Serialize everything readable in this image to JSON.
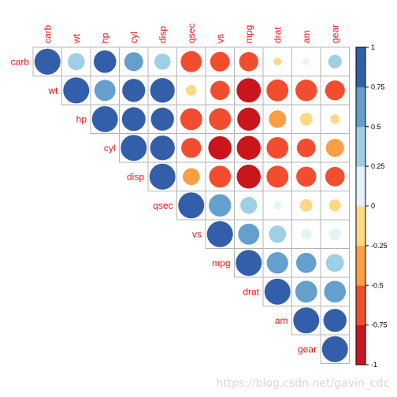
{
  "chart_data": {
    "type": "heatmap",
    "variables": [
      "carb",
      "wt",
      "hp",
      "cyl",
      "disp",
      "qsec",
      "vs",
      "mpg",
      "drat",
      "am",
      "gear"
    ],
    "matrix": [
      [
        1.0,
        0.43,
        0.75,
        0.53,
        0.39,
        -0.66,
        -0.57,
        -0.55,
        -0.09,
        0.06,
        0.27
      ],
      [
        0.43,
        1.0,
        0.66,
        0.78,
        0.89,
        -0.17,
        -0.55,
        -0.87,
        -0.71,
        -0.69,
        -0.58
      ],
      [
        0.75,
        0.66,
        1.0,
        0.83,
        0.79,
        -0.71,
        -0.72,
        -0.78,
        -0.45,
        -0.24,
        -0.13
      ],
      [
        0.53,
        0.78,
        0.83,
        1.0,
        0.9,
        -0.59,
        -0.81,
        -0.85,
        -0.7,
        -0.52,
        -0.49
      ],
      [
        0.39,
        0.89,
        0.79,
        0.9,
        1.0,
        -0.43,
        -0.71,
        -0.85,
        -0.71,
        -0.59,
        -0.56
      ],
      [
        -0.66,
        -0.17,
        -0.71,
        -0.59,
        -0.43,
        1.0,
        0.74,
        0.42,
        0.09,
        -0.23,
        -0.21
      ],
      [
        -0.57,
        -0.55,
        -0.72,
        -0.81,
        -0.71,
        0.74,
        1.0,
        0.66,
        0.44,
        0.17,
        0.21
      ],
      [
        -0.55,
        -0.87,
        -0.78,
        -0.85,
        -0.85,
        0.42,
        0.66,
        1.0,
        0.68,
        0.6,
        0.48
      ],
      [
        -0.09,
        -0.71,
        -0.45,
        -0.7,
        -0.71,
        0.09,
        0.44,
        0.68,
        1.0,
        0.71,
        0.7
      ],
      [
        0.06,
        -0.69,
        -0.24,
        -0.52,
        -0.59,
        -0.23,
        0.17,
        0.6,
        0.71,
        1.0,
        0.79
      ],
      [
        0.27,
        -0.58,
        -0.13,
        -0.49,
        -0.56,
        -0.21,
        0.21,
        0.48,
        0.7,
        0.79,
        1.0
      ]
    ],
    "layout": "upper-triangle",
    "glyph": "circle",
    "scale": {
      "range": [
        -1,
        1
      ],
      "ticks": [
        {
          "value": 1,
          "label": "1"
        },
        {
          "value": 0.75,
          "label": "0.75"
        },
        {
          "value": 0.5,
          "label": "0.5"
        },
        {
          "value": 0.25,
          "label": "0.25"
        },
        {
          "value": 0,
          "label": "0"
        },
        {
          "value": -0.25,
          "label": "-0.25"
        },
        {
          "value": -0.5,
          "label": "-0.5"
        },
        {
          "value": -0.75,
          "label": "-0.75"
        },
        {
          "value": -1,
          "label": "-1"
        }
      ],
      "colors": [
        "#c9151c",
        "#f34d30",
        "#fc9e45",
        "#fdd885",
        "#e3f3f8",
        "#9ecfe4",
        "#649fcd",
        "#335ea9"
      ]
    },
    "label_color": "#e8141b",
    "legend_placement": "right"
  },
  "watermark": "https://blog.csdn.net/gavin_cdc"
}
